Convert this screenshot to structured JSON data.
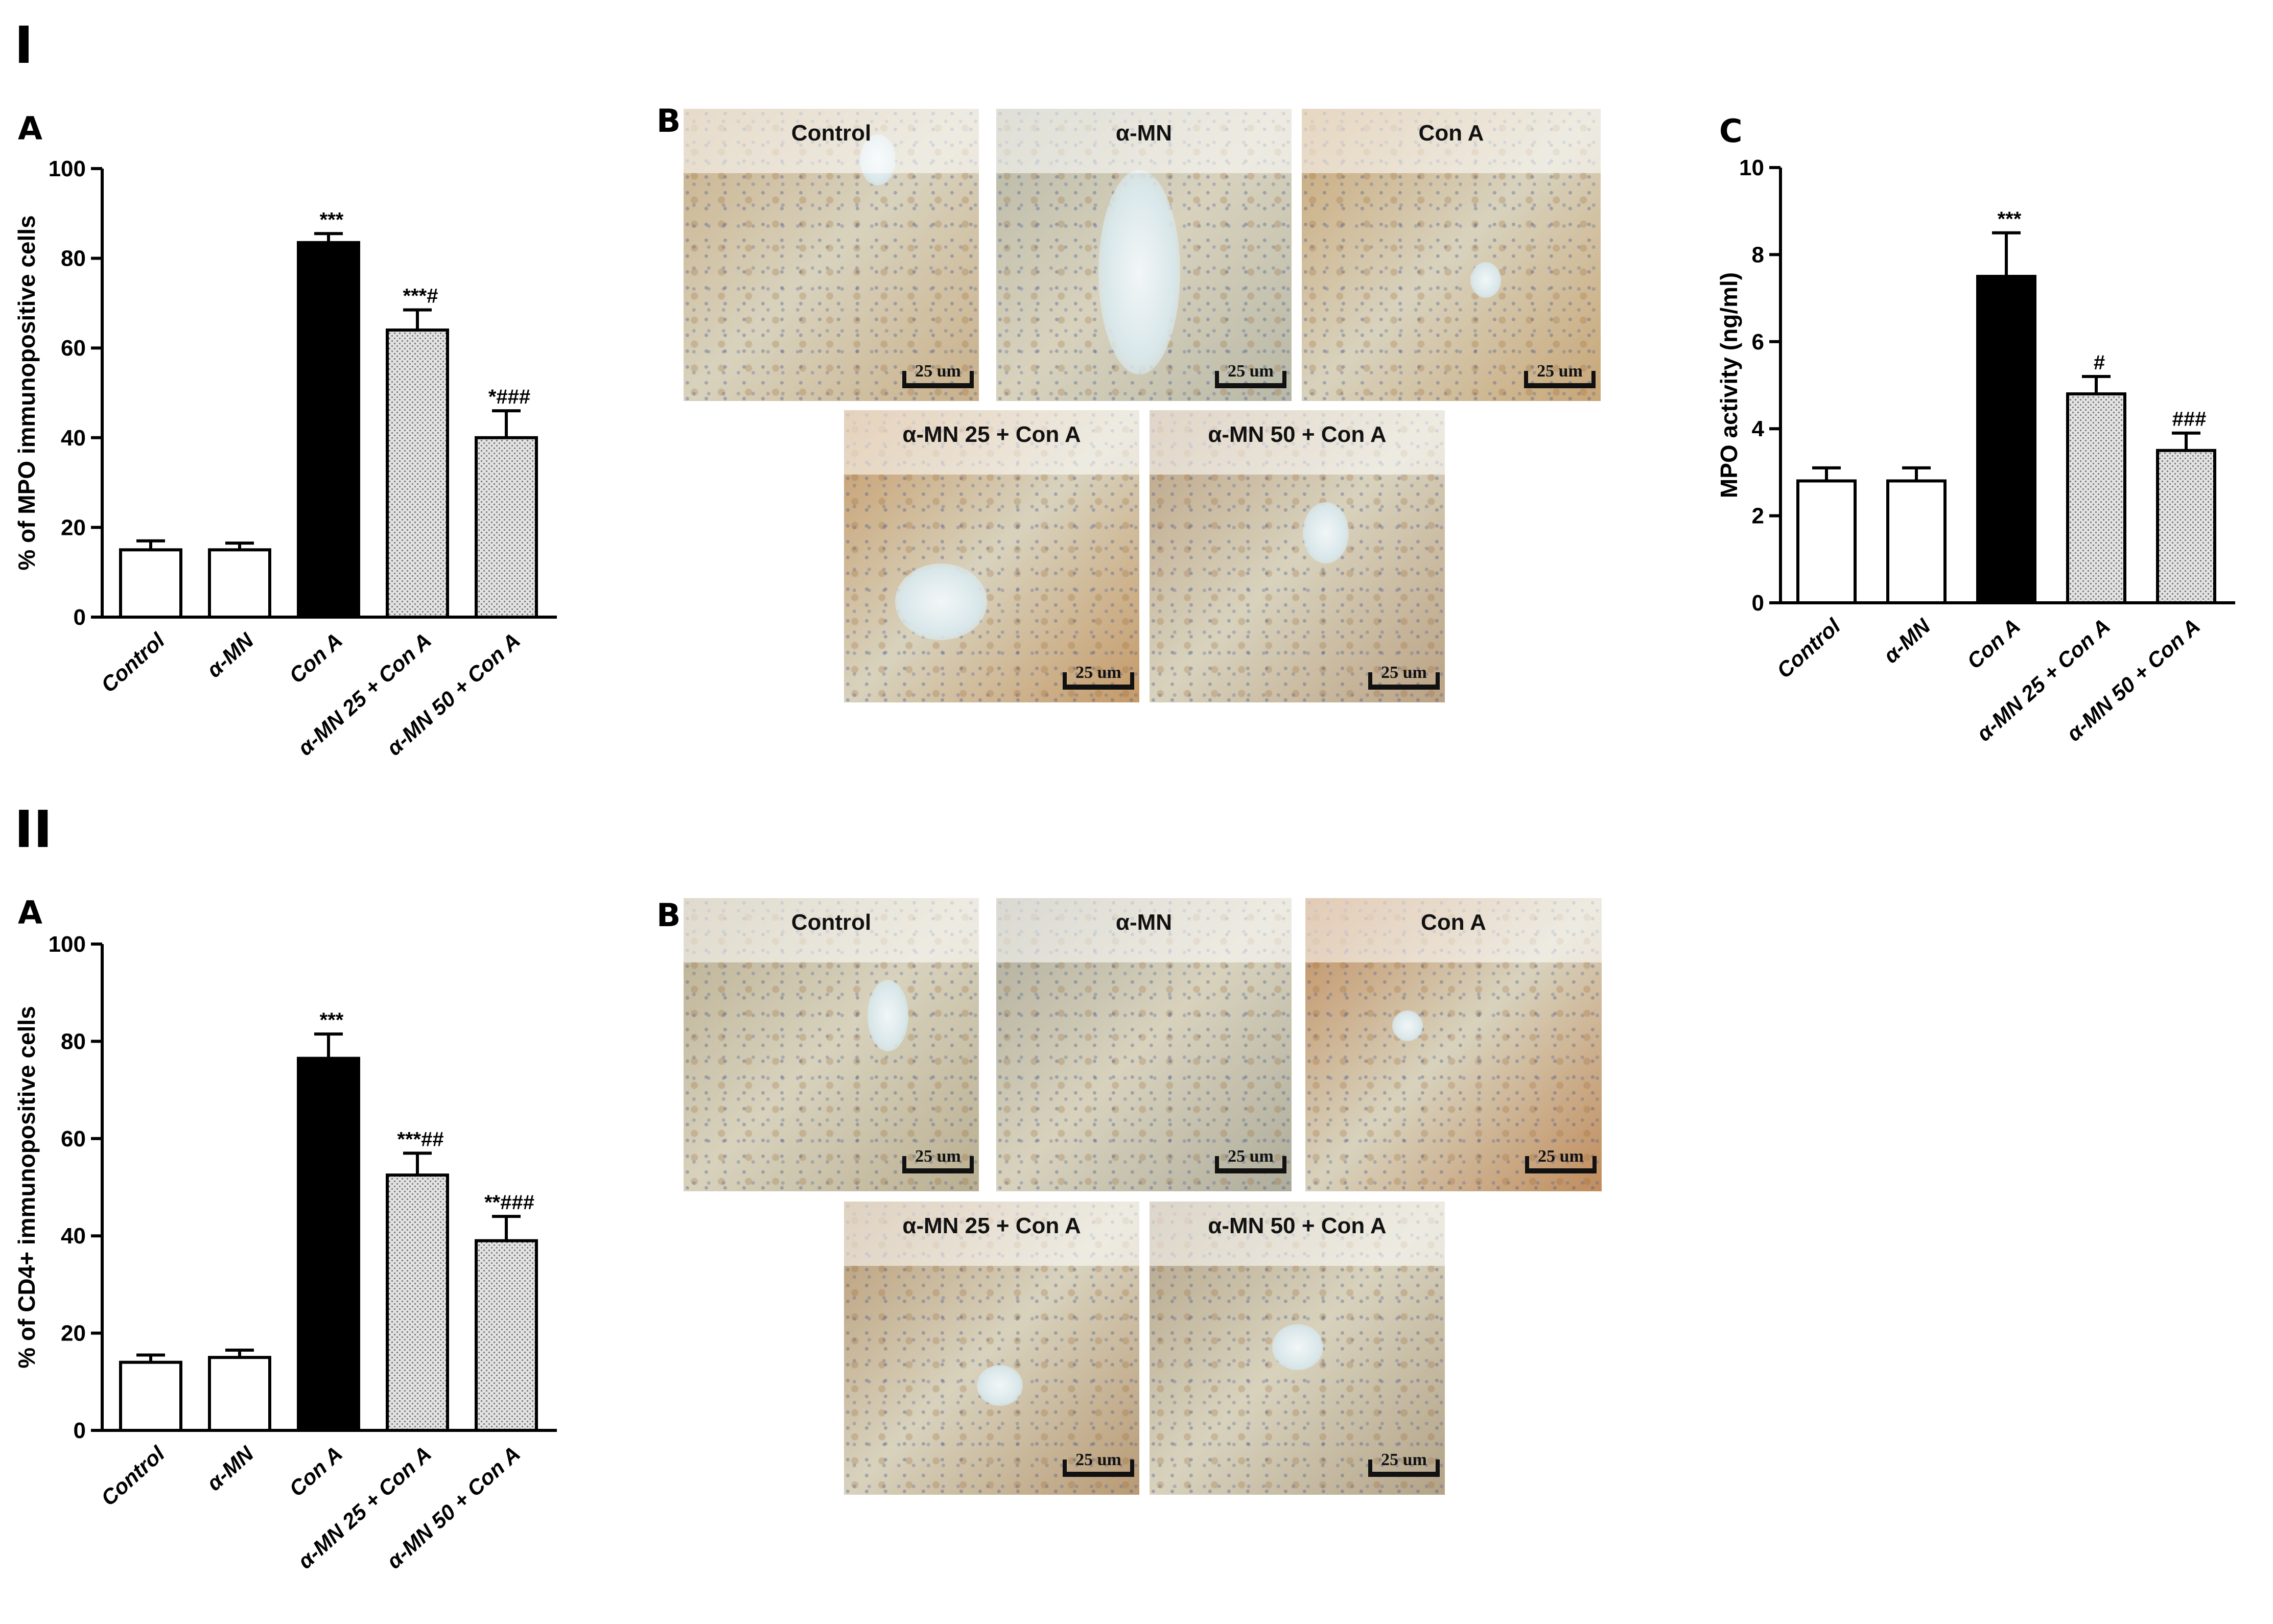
{
  "figure": {
    "section_labels": {
      "first": "I",
      "second": "II"
    },
    "panel_labels": {
      "IA": "A",
      "IB": "B",
      "IC": "C",
      "IIA": "A",
      "IIB": "B"
    },
    "micrographs": {
      "scale_bar": "25 um",
      "I": [
        {
          "caption": "Control",
          "tint": "#c9b08a"
        },
        {
          "caption": "α-MN",
          "tint": "#b8b8a6"
        },
        {
          "caption": "Con A",
          "tint": "#c8a676"
        },
        {
          "caption": "α-MN 25 + Con A",
          "tint": "#c59a68"
        },
        {
          "caption": "α-MN 50 + Con A",
          "tint": "#bba283"
        }
      ],
      "II": [
        {
          "caption": "Control",
          "tint": "#b9ae90"
        },
        {
          "caption": "α-MN",
          "tint": "#aeac9a"
        },
        {
          "caption": "Con A",
          "tint": "#c08c5c"
        },
        {
          "caption": "α-MN 25 + Con A",
          "tint": "#b89a74"
        },
        {
          "caption": "α-MN 50 + Con A",
          "tint": "#b3a387"
        }
      ]
    }
  },
  "chart_data": [
    {
      "id": "IA",
      "type": "bar",
      "categories": [
        "Control",
        "α-MN",
        "Con A",
        "α-MN 25 + Con A",
        "α-MN 50 + Con A"
      ],
      "values": [
        15,
        15,
        83.5,
        64,
        40
      ],
      "errors": [
        2,
        1.5,
        2,
        4.5,
        6
      ],
      "annotations": [
        "",
        "",
        "***",
        "***#",
        "*###"
      ],
      "fills": [
        "white",
        "white",
        "black",
        "dotted",
        "dotted"
      ],
      "ylabel": "% of MPO immunopositive cells",
      "ylim": [
        0,
        100
      ],
      "yticks": [
        0,
        20,
        40,
        60,
        80,
        100
      ]
    },
    {
      "id": "IC",
      "type": "bar",
      "categories": [
        "Control",
        "α-MN",
        "Con A",
        "α-MN 25 + Con A",
        "α-MN 50 + Con A"
      ],
      "values": [
        2.8,
        2.8,
        7.5,
        4.8,
        3.5
      ],
      "errors": [
        0.3,
        0.3,
        1.0,
        0.4,
        0.4
      ],
      "annotations": [
        "",
        "",
        "***",
        "#",
        "###"
      ],
      "fills": [
        "white",
        "white",
        "black",
        "dotted",
        "dotted"
      ],
      "ylabel": "MPO activity (ng/ml)",
      "ylim": [
        0,
        10
      ],
      "yticks": [
        0,
        2,
        4,
        6,
        8,
        10
      ]
    },
    {
      "id": "IIA",
      "type": "bar",
      "categories": [
        "Control",
        "α-MN",
        "Con A",
        "α-MN 25 + Con A",
        "α-MN 50 + Con A"
      ],
      "values": [
        14,
        15,
        76.5,
        52.5,
        39
      ],
      "errors": [
        1.5,
        1.5,
        5,
        4.5,
        5
      ],
      "annotations": [
        "",
        "",
        "***",
        "***##",
        "**###"
      ],
      "fills": [
        "white",
        "white",
        "black",
        "dotted",
        "dotted"
      ],
      "ylabel": "% of CD4+ immunopositive cells",
      "ylim": [
        0,
        100
      ],
      "yticks": [
        0,
        20,
        40,
        60,
        80,
        100
      ]
    }
  ]
}
